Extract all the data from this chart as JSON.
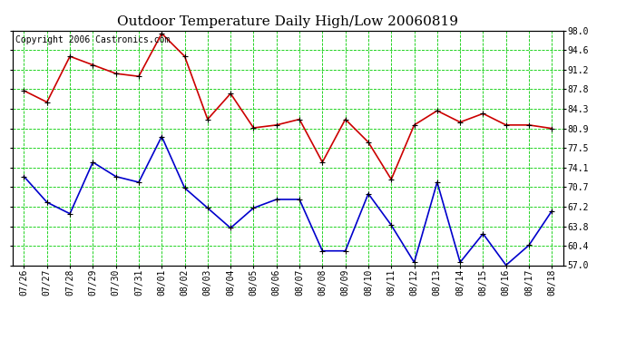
{
  "title": "Outdoor Temperature Daily High/Low 20060819",
  "copyright_text": "Copyright 2006 Castronics.com",
  "x_labels": [
    "07/26",
    "07/27",
    "07/28",
    "07/29",
    "07/30",
    "07/31",
    "08/01",
    "08/02",
    "08/03",
    "08/04",
    "08/05",
    "08/06",
    "08/07",
    "08/08",
    "08/09",
    "08/10",
    "08/11",
    "08/12",
    "08/13",
    "08/14",
    "08/15",
    "08/16",
    "08/17",
    "08/18"
  ],
  "high_temps": [
    87.5,
    85.5,
    93.5,
    92.0,
    90.5,
    90.0,
    97.5,
    93.5,
    82.5,
    87.0,
    81.0,
    81.5,
    82.5,
    75.0,
    82.5,
    78.5,
    72.0,
    81.5,
    84.0,
    82.0,
    83.5,
    81.5,
    81.5,
    80.9
  ],
  "low_temps": [
    72.5,
    68.0,
    66.0,
    75.0,
    72.5,
    71.5,
    79.5,
    70.5,
    67.0,
    63.5,
    67.0,
    68.5,
    68.5,
    59.5,
    59.5,
    69.5,
    64.0,
    57.5,
    71.5,
    57.5,
    62.5,
    57.0,
    60.5,
    66.5
  ],
  "high_color": "#cc0000",
  "low_color": "#0000cc",
  "marker_color": "#000000",
  "grid_color": "#00cc00",
  "background_color": "#ffffff",
  "plot_bg_color": "#ffffff",
  "ymin": 57.0,
  "ymax": 98.0,
  "yticks": [
    57.0,
    60.4,
    63.8,
    67.2,
    70.7,
    74.1,
    77.5,
    80.9,
    84.3,
    87.8,
    91.2,
    94.6,
    98.0
  ],
  "title_fontsize": 11,
  "copyright_fontsize": 7,
  "tick_fontsize": 7,
  "marker_size": 4,
  "line_width": 1.2
}
